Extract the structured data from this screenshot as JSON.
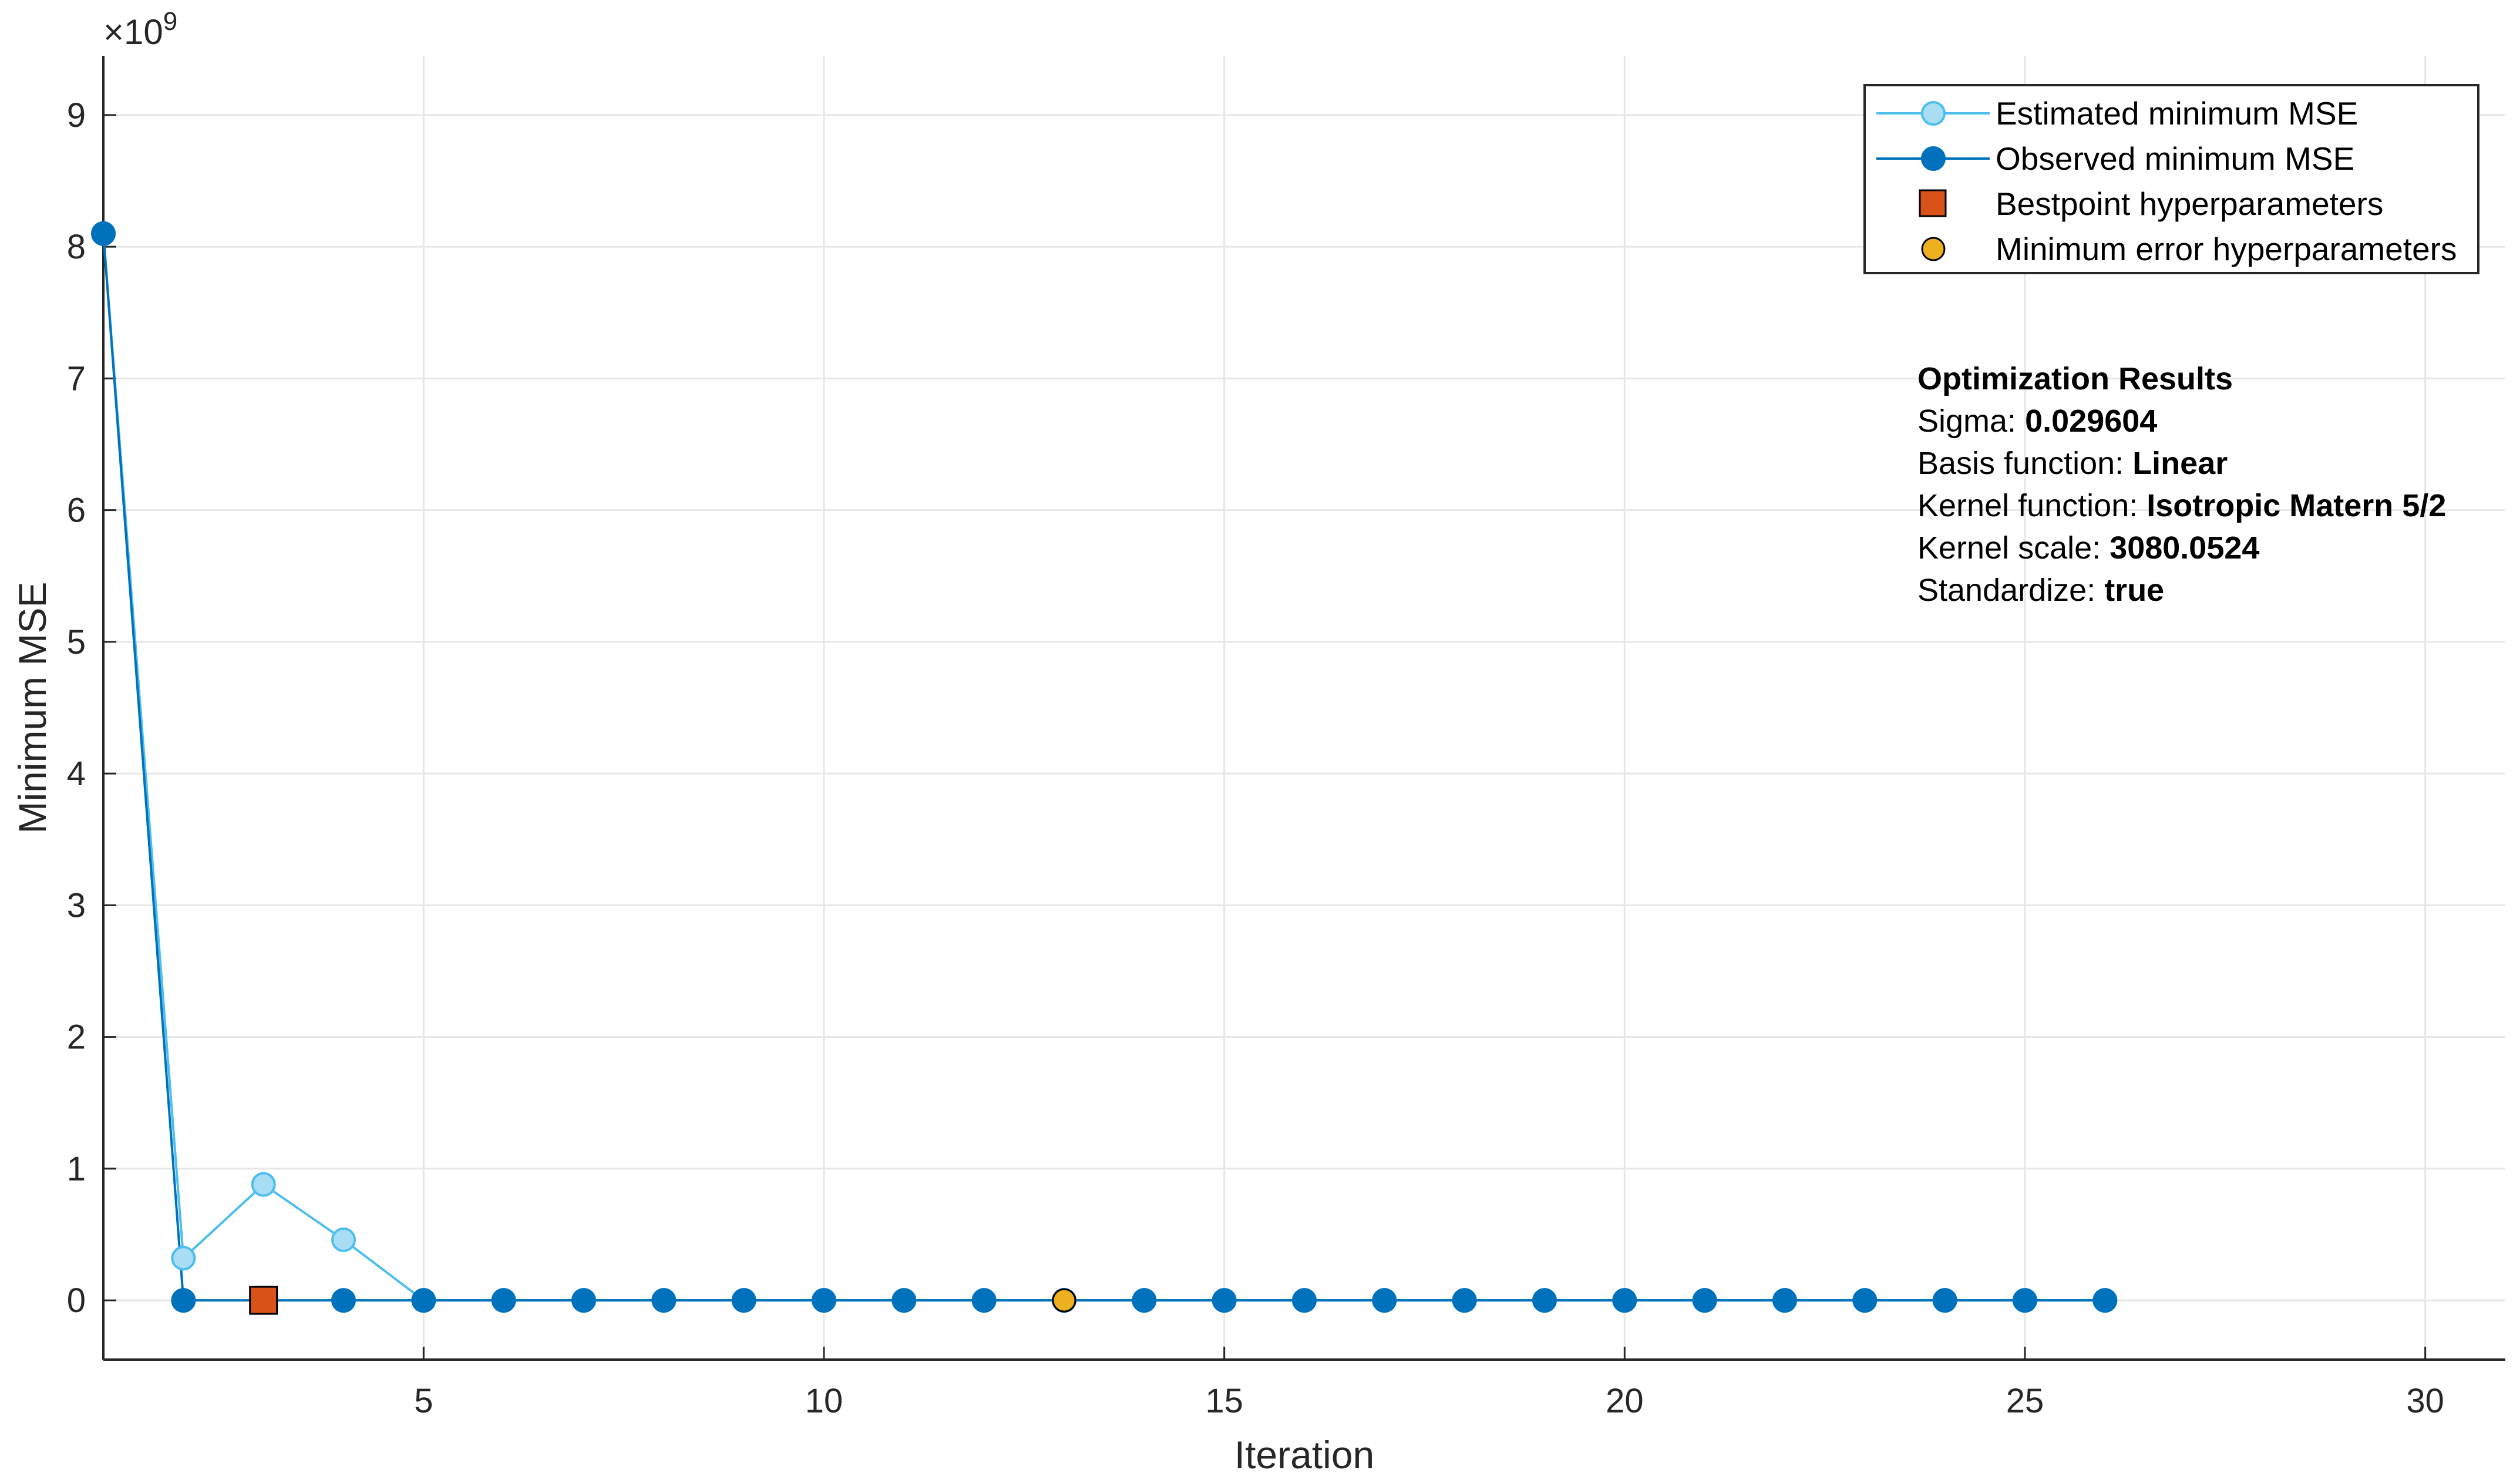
{
  "chart_data": {
    "type": "line",
    "xlabel": "Iteration",
    "ylabel": "Minimum MSE",
    "y_multiplier": "×10",
    "y_multiplier_exp": "9",
    "xlim": [
      1,
      31
    ],
    "ylim": [
      -0.45,
      9.45
    ],
    "x_ticks": [
      5,
      10,
      15,
      20,
      25,
      30
    ],
    "y_ticks": [
      0,
      1,
      2,
      3,
      4,
      5,
      6,
      7,
      8,
      9
    ],
    "grid": true,
    "legend_position": "top-right",
    "series": [
      {
        "name": "Estimated minimum MSE",
        "color": "#4DBEEE",
        "marker_fill": "#A8DDF4",
        "x": [
          1,
          2,
          3,
          4,
          5,
          6,
          7,
          8,
          9,
          10,
          11,
          12,
          13,
          14,
          15,
          16,
          17,
          18,
          19,
          20,
          21,
          22,
          23,
          24,
          25,
          26
        ],
        "y": [
          8.1,
          0.32,
          0.88,
          0.46,
          0,
          0,
          0,
          0,
          0,
          0,
          0,
          0,
          0,
          0,
          0,
          0,
          0,
          0,
          0,
          0,
          0,
          0,
          0,
          0,
          0,
          0
        ]
      },
      {
        "name": "Observed minimum MSE",
        "color": "#0072BD",
        "marker_fill": "#0072BD",
        "x": [
          1,
          2,
          3,
          4,
          5,
          6,
          7,
          8,
          9,
          10,
          11,
          12,
          13,
          14,
          15,
          16,
          17,
          18,
          19,
          20,
          21,
          22,
          23,
          24,
          25,
          26
        ],
        "y": [
          8.1,
          0,
          0,
          0,
          0,
          0,
          0,
          0,
          0,
          0,
          0,
          0,
          0,
          0,
          0,
          0,
          0,
          0,
          0,
          0,
          0,
          0,
          0,
          0,
          0,
          0
        ]
      }
    ],
    "markers": [
      {
        "name": "Bestpoint hyperparameters",
        "shape": "square",
        "color": "#D95319",
        "x": 3,
        "y": 0
      },
      {
        "name": "Minimum error hyperparameters",
        "shape": "circle",
        "color": "#EDB120",
        "x": 13,
        "y": 0
      }
    ],
    "annotation": {
      "title": "Optimization Results",
      "lines": [
        {
          "label": "Sigma: ",
          "value": "0.029604"
        },
        {
          "label": "Basis function: ",
          "value": "Linear"
        },
        {
          "label": "Kernel function: ",
          "value": "Isotropic Matern 5/2"
        },
        {
          "label": "Kernel scale: ",
          "value": "3080.0524"
        },
        {
          "label": "Standardize: ",
          "value": "true"
        }
      ]
    }
  }
}
